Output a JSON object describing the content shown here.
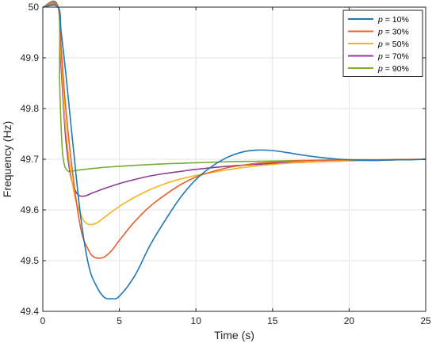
{
  "chart_data": {
    "type": "line",
    "xlabel": "Time (s)",
    "ylabel": "Frequency (Hz)",
    "xlim": [
      0,
      25
    ],
    "ylim": [
      49.4,
      50
    ],
    "xticks": [
      "0",
      "5",
      "10",
      "15",
      "20",
      "25"
    ],
    "yticks": [
      "49.4",
      "49.5",
      "49.6",
      "49.7",
      "49.8",
      "49.9",
      "50"
    ],
    "grid": true,
    "legend_position": "top-right",
    "legend_var": "p",
    "series": [
      {
        "name": "p = 10%",
        "label_suffix": " = 10%",
        "color": "#1f77b4",
        "x": [
          0,
          1,
          1.2,
          1.5,
          2,
          2.5,
          3,
          3.5,
          4,
          4.5,
          5,
          6,
          7,
          8,
          9,
          10,
          11,
          12,
          13,
          14,
          15,
          16,
          17,
          18,
          19,
          20,
          21,
          22,
          23,
          24,
          25
        ],
        "y": [
          50,
          50,
          49.95,
          49.87,
          49.72,
          49.58,
          49.49,
          49.45,
          49.428,
          49.425,
          49.43,
          49.47,
          49.53,
          49.58,
          49.625,
          49.66,
          49.685,
          49.703,
          49.714,
          49.718,
          49.717,
          49.713,
          49.708,
          49.704,
          49.701,
          49.699,
          49.698,
          49.698,
          49.699,
          49.699,
          49.7
        ]
      },
      {
        "name": "p = 30%",
        "label_suffix": " = 30%",
        "color": "#e8602b",
        "x": [
          0,
          1,
          1.2,
          1.5,
          2,
          2.5,
          3,
          3.3,
          3.6,
          4,
          4.5,
          5,
          6,
          7,
          8,
          9,
          10,
          11,
          12,
          13,
          14,
          15,
          16,
          18,
          20,
          22,
          25
        ],
        "y": [
          50,
          50,
          49.92,
          49.8,
          49.66,
          49.56,
          49.52,
          49.508,
          49.505,
          49.507,
          49.52,
          49.54,
          49.577,
          49.607,
          49.63,
          49.65,
          49.665,
          49.675,
          49.683,
          49.688,
          49.692,
          49.694,
          49.696,
          49.698,
          49.699,
          49.699,
          49.7
        ]
      },
      {
        "name": "p = 50%",
        "label_suffix": " = 50%",
        "color": "#f5b41e",
        "x": [
          0,
          1,
          1.2,
          1.5,
          2,
          2.5,
          2.8,
          3.1,
          3.5,
          4,
          5,
          6,
          7,
          8,
          9,
          10,
          12,
          14,
          16,
          18,
          20,
          22,
          25
        ],
        "y": [
          50,
          50,
          49.9,
          49.76,
          49.64,
          49.59,
          49.575,
          49.571,
          49.574,
          49.585,
          49.607,
          49.625,
          49.64,
          49.652,
          49.661,
          49.668,
          49.679,
          49.687,
          49.692,
          49.695,
          49.697,
          49.698,
          49.7
        ]
      },
      {
        "name": "p = 70%",
        "label_suffix": " = 70%",
        "color": "#8e3d97",
        "x": [
          0,
          1,
          1.2,
          1.5,
          1.8,
          2.1,
          2.4,
          2.8,
          3.2,
          4,
          5,
          6,
          7,
          8,
          9,
          10,
          12,
          14,
          16,
          18,
          20,
          22,
          25
        ],
        "y": [
          50,
          50,
          49.88,
          49.74,
          49.67,
          49.64,
          49.628,
          49.628,
          49.633,
          49.642,
          49.652,
          49.66,
          49.667,
          49.672,
          49.676,
          49.68,
          49.686,
          49.69,
          49.693,
          49.695,
          49.697,
          49.698,
          49.7
        ]
      },
      {
        "name": "p = 90%",
        "label_suffix": " = 90%",
        "color": "#77ac30",
        "x": [
          0,
          1,
          1.1,
          1.25,
          1.4,
          1.6,
          1.8,
          2.2,
          3,
          4,
          5,
          6,
          8,
          10,
          12,
          14,
          16,
          18,
          20,
          22,
          25
        ],
        "y": [
          50,
          50,
          49.85,
          49.73,
          49.69,
          49.678,
          49.676,
          49.678,
          49.681,
          49.684,
          49.686,
          49.688,
          49.691,
          49.693,
          49.695,
          49.696,
          49.697,
          49.698,
          49.699,
          49.699,
          49.7
        ]
      }
    ]
  }
}
